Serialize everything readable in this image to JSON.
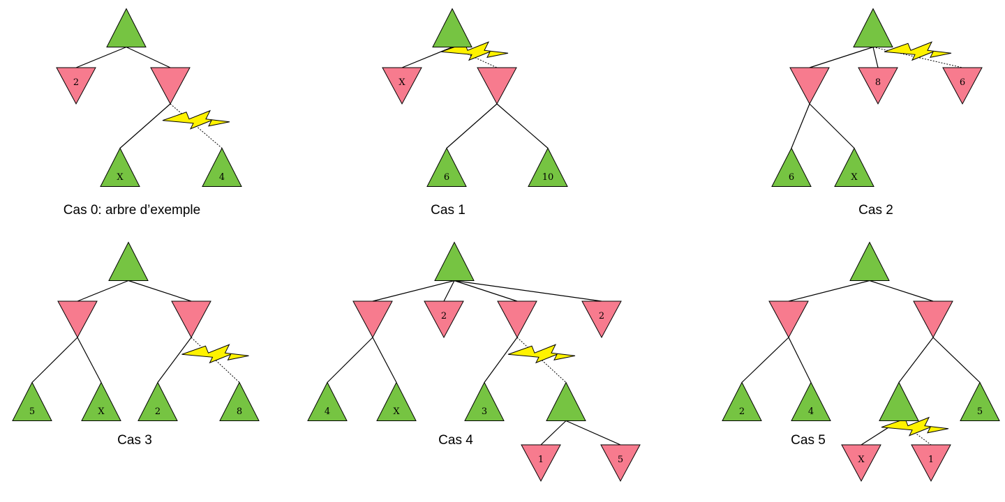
{
  "colors": {
    "max_node": "#76c442",
    "min_node": "#f77b8e",
    "edge": "#000000",
    "cut_bolt": "#fff200"
  },
  "cases": [
    {
      "caption": "Cas 0: arbre d’exemple",
      "nodes": [
        {
          "id": "root",
          "type": "max",
          "label": ""
        },
        {
          "id": "a",
          "type": "min",
          "label": "2"
        },
        {
          "id": "b",
          "type": "min",
          "label": ""
        },
        {
          "id": "c",
          "type": "max",
          "label": "X"
        },
        {
          "id": "d",
          "type": "max",
          "label": "4"
        }
      ],
      "edges": [
        {
          "from": "root",
          "to": "a",
          "cut": false
        },
        {
          "from": "root",
          "to": "b",
          "cut": false
        },
        {
          "from": "b",
          "to": "c",
          "cut": false
        },
        {
          "from": "b",
          "to": "d",
          "cut": true
        }
      ]
    },
    {
      "caption": "Cas 1",
      "nodes": [
        {
          "id": "root",
          "type": "max",
          "label": ""
        },
        {
          "id": "a",
          "type": "min",
          "label": "X"
        },
        {
          "id": "b",
          "type": "min",
          "label": ""
        },
        {
          "id": "c",
          "type": "max",
          "label": "6"
        },
        {
          "id": "d",
          "type": "max",
          "label": "10"
        }
      ],
      "edges": [
        {
          "from": "root",
          "to": "a",
          "cut": false
        },
        {
          "from": "root",
          "to": "b",
          "cut": true
        },
        {
          "from": "b",
          "to": "c",
          "cut": false
        },
        {
          "from": "b",
          "to": "d",
          "cut": false
        }
      ]
    },
    {
      "caption": "Cas 2",
      "nodes": [
        {
          "id": "root",
          "type": "max",
          "label": ""
        },
        {
          "id": "a",
          "type": "min",
          "label": ""
        },
        {
          "id": "b",
          "type": "min",
          "label": "8"
        },
        {
          "id": "c",
          "type": "min",
          "label": "6"
        },
        {
          "id": "d",
          "type": "max",
          "label": "6"
        },
        {
          "id": "e",
          "type": "max",
          "label": "X"
        }
      ],
      "edges": [
        {
          "from": "root",
          "to": "a",
          "cut": false
        },
        {
          "from": "root",
          "to": "b",
          "cut": false
        },
        {
          "from": "root",
          "to": "c",
          "cut": true
        },
        {
          "from": "a",
          "to": "d",
          "cut": false
        },
        {
          "from": "a",
          "to": "e",
          "cut": false
        }
      ]
    },
    {
      "caption": "Cas 3",
      "nodes": [
        {
          "id": "root",
          "type": "max",
          "label": ""
        },
        {
          "id": "a",
          "type": "min",
          "label": ""
        },
        {
          "id": "b",
          "type": "min",
          "label": ""
        },
        {
          "id": "c",
          "type": "max",
          "label": "5"
        },
        {
          "id": "d",
          "type": "max",
          "label": "X"
        },
        {
          "id": "e",
          "type": "max",
          "label": "2"
        },
        {
          "id": "f",
          "type": "max",
          "label": "8"
        }
      ],
      "edges": [
        {
          "from": "root",
          "to": "a",
          "cut": false
        },
        {
          "from": "root",
          "to": "b",
          "cut": false
        },
        {
          "from": "a",
          "to": "c",
          "cut": false
        },
        {
          "from": "a",
          "to": "d",
          "cut": false
        },
        {
          "from": "b",
          "to": "e",
          "cut": false
        },
        {
          "from": "b",
          "to": "f",
          "cut": true
        }
      ]
    },
    {
      "caption": "Cas 4",
      "nodes": [
        {
          "id": "root",
          "type": "max",
          "label": ""
        },
        {
          "id": "a",
          "type": "min",
          "label": ""
        },
        {
          "id": "b",
          "type": "min",
          "label": "2"
        },
        {
          "id": "c",
          "type": "min",
          "label": ""
        },
        {
          "id": "d",
          "type": "min",
          "label": "2"
        },
        {
          "id": "e",
          "type": "max",
          "label": "4"
        },
        {
          "id": "f",
          "type": "max",
          "label": "X"
        },
        {
          "id": "g",
          "type": "max",
          "label": "3"
        },
        {
          "id": "h",
          "type": "max",
          "label": ""
        },
        {
          "id": "i",
          "type": "min",
          "label": "1"
        },
        {
          "id": "j",
          "type": "min",
          "label": "5"
        }
      ],
      "edges": [
        {
          "from": "root",
          "to": "a",
          "cut": false
        },
        {
          "from": "root",
          "to": "b",
          "cut": false
        },
        {
          "from": "root",
          "to": "c",
          "cut": false
        },
        {
          "from": "root",
          "to": "d",
          "cut": false
        },
        {
          "from": "a",
          "to": "e",
          "cut": false
        },
        {
          "from": "a",
          "to": "f",
          "cut": false
        },
        {
          "from": "c",
          "to": "g",
          "cut": false
        },
        {
          "from": "c",
          "to": "h",
          "cut": true
        },
        {
          "from": "h",
          "to": "i",
          "cut": false
        },
        {
          "from": "h",
          "to": "j",
          "cut": false
        }
      ]
    },
    {
      "caption": "Cas 5",
      "nodes": [
        {
          "id": "root",
          "type": "max",
          "label": ""
        },
        {
          "id": "a",
          "type": "min",
          "label": ""
        },
        {
          "id": "b",
          "type": "min",
          "label": ""
        },
        {
          "id": "c",
          "type": "max",
          "label": "2"
        },
        {
          "id": "d",
          "type": "max",
          "label": "4"
        },
        {
          "id": "e",
          "type": "max",
          "label": ""
        },
        {
          "id": "f",
          "type": "max",
          "label": "5"
        },
        {
          "id": "g",
          "type": "min",
          "label": "X"
        },
        {
          "id": "h",
          "type": "min",
          "label": "1"
        }
      ],
      "edges": [
        {
          "from": "root",
          "to": "a",
          "cut": false
        },
        {
          "from": "root",
          "to": "b",
          "cut": false
        },
        {
          "from": "a",
          "to": "c",
          "cut": false
        },
        {
          "from": "a",
          "to": "d",
          "cut": false
        },
        {
          "from": "b",
          "to": "e",
          "cut": false
        },
        {
          "from": "b",
          "to": "f",
          "cut": false
        },
        {
          "from": "e",
          "to": "g",
          "cut": false
        },
        {
          "from": "e",
          "to": "h",
          "cut": true
        }
      ]
    }
  ]
}
